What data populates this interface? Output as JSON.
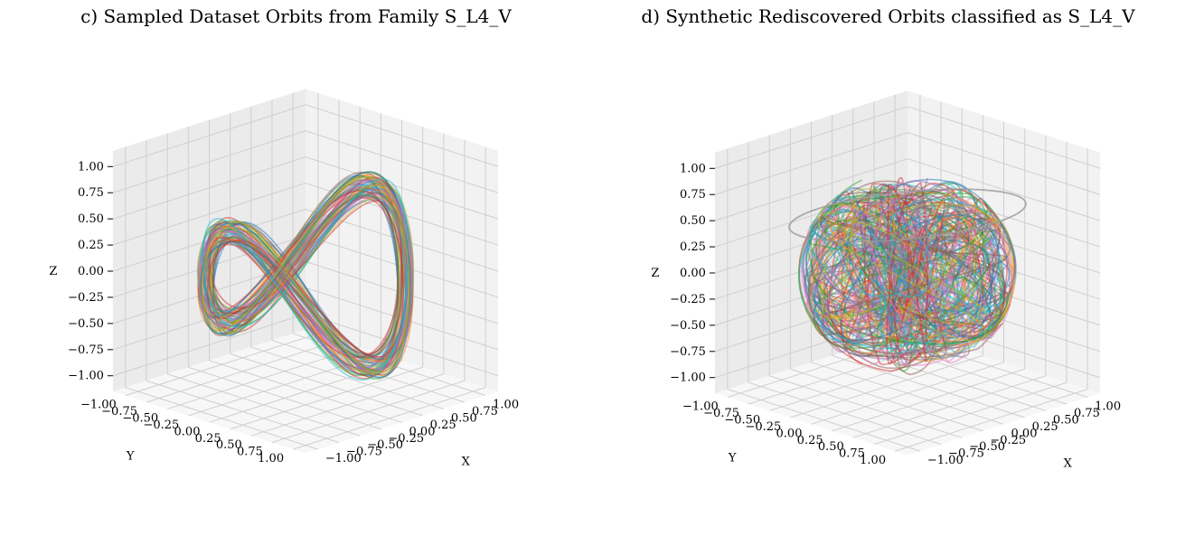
{
  "chart_data": [
    {
      "type": "line3d",
      "title": "c) Sampled Dataset Orbits from Family S_L4_V",
      "xlabel": "X",
      "ylabel": "Y",
      "zlabel": "Z",
      "xlim": [
        -1,
        1
      ],
      "ylim": [
        -1,
        1
      ],
      "zlim": [
        -1,
        1
      ],
      "xticks": [
        "−1.00",
        "−0.75",
        "−0.50",
        "−0.25",
        "0.00",
        "0.25",
        "0.50",
        "0.75",
        "1.00"
      ],
      "yticks": [
        "−1.00",
        "−0.75",
        "−0.50",
        "−0.25",
        "0.00",
        "0.25",
        "0.50",
        "0.75",
        "1.00"
      ],
      "zticks": [
        "−1.00",
        "−0.75",
        "−0.50",
        "−0.25",
        "0.00",
        "0.25",
        "0.50",
        "0.75",
        "1.00"
      ],
      "grid": true,
      "view": {
        "elev": 20,
        "azim": 45
      },
      "series_style": "many semi-transparent orbits, default color cycle"
    },
    {
      "type": "line3d",
      "title": "d) Synthetic Rediscovered Orbits classified as S_L4_V",
      "xlabel": "X",
      "ylabel": "Y",
      "zlabel": "Z",
      "xlim": [
        -1,
        1
      ],
      "ylim": [
        -1,
        1
      ],
      "zlim": [
        -1,
        1
      ],
      "xticks": [
        "−1.00",
        "−0.75",
        "−0.50",
        "−0.25",
        "0.00",
        "0.25",
        "0.50",
        "0.75",
        "1.00"
      ],
      "yticks": [
        "−1.00",
        "−0.75",
        "−0.50",
        "−0.25",
        "0.00",
        "0.25",
        "0.50",
        "0.75",
        "1.00"
      ],
      "zticks": [
        "−1.00",
        "−0.75",
        "−0.50",
        "−0.25",
        "0.00",
        "0.25",
        "0.50",
        "0.75",
        "1.00"
      ],
      "grid": true,
      "view": {
        "elev": 20,
        "azim": 45
      },
      "series_style": "many semi-transparent orbits, default color cycle, one gray outlier orbit"
    }
  ],
  "colors": {
    "pane": "#f2f2f2",
    "grid": "#cfcfcf",
    "cycle": [
      "#1f77b4",
      "#ff7f0e",
      "#2ca02c",
      "#d62728",
      "#9467bd",
      "#8c564b",
      "#e377c2",
      "#7f7f7f",
      "#bcbd22",
      "#17becf"
    ],
    "outlier": "#9a9a9a"
  }
}
